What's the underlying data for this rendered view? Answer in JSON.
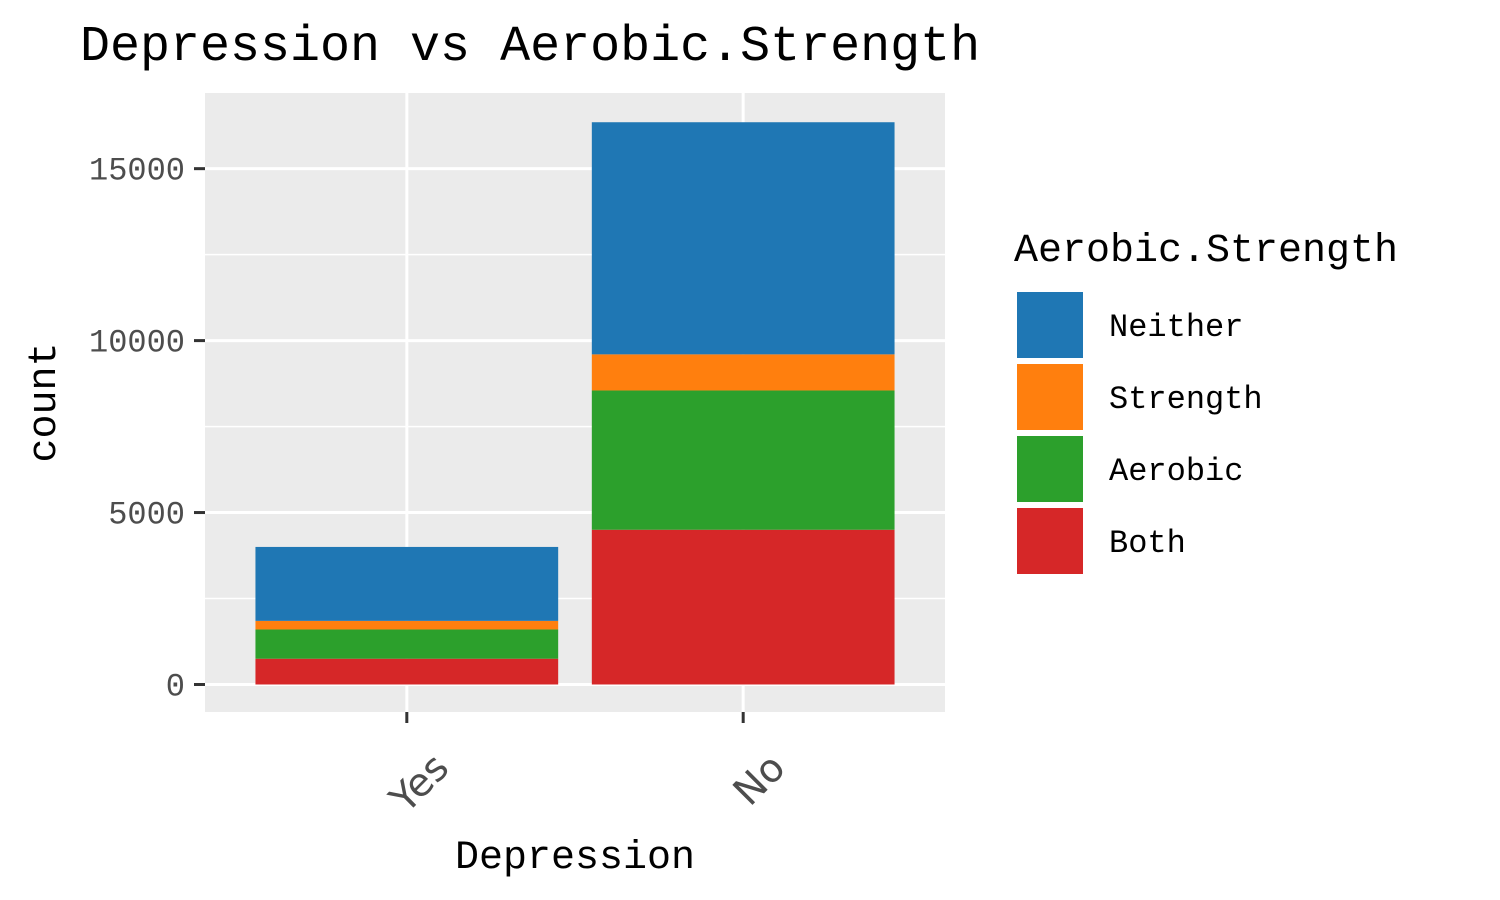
{
  "chart_data": {
    "type": "bar",
    "stacked": true,
    "title": "Depression vs Aerobic.Strength",
    "xlabel": "Depression",
    "ylabel": "count",
    "categories": [
      "Yes",
      "No"
    ],
    "series": [
      {
        "name": "Both",
        "color": "#d62728",
        "values": [
          750,
          4500
        ]
      },
      {
        "name": "Aerobic",
        "color": "#2ca02c",
        "values": [
          850,
          4050
        ]
      },
      {
        "name": "Strength",
        "color": "#ff7f0e",
        "values": [
          250,
          1050
        ]
      },
      {
        "name": "Neither",
        "color": "#1f77b4",
        "values": [
          2150,
          6750
        ]
      }
    ],
    "legend_title": "Aerobic.Strength",
    "legend_order": [
      "Neither",
      "Strength",
      "Aerobic",
      "Both"
    ],
    "yticks": [
      0,
      5000,
      10000,
      15000
    ],
    "ytick_labels": [
      "0",
      "5000",
      "10000",
      "15000"
    ],
    "ylim": [
      -800,
      17200
    ],
    "grid": true,
    "legend_position": "right",
    "panel_background": "#ebebeb"
  }
}
